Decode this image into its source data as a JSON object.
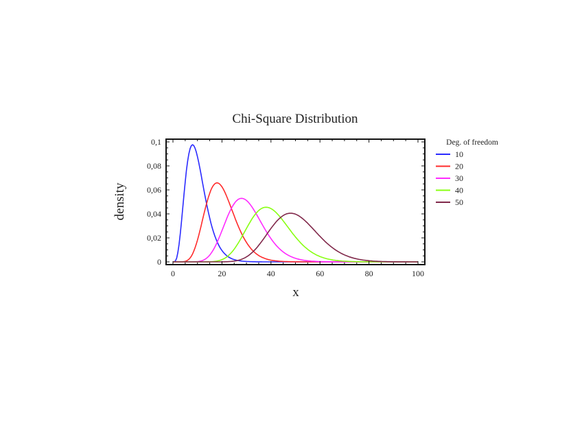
{
  "chart_data": {
    "type": "line",
    "title": "Chi-Square Distribution",
    "xlabel": "x",
    "ylabel": "density",
    "xlim": [
      0,
      100
    ],
    "ylim": [
      0,
      0.1
    ],
    "xticks": [
      "0",
      "20",
      "40",
      "60",
      "80",
      "100"
    ],
    "xtick_values": [
      0,
      20,
      40,
      60,
      80,
      100
    ],
    "yticks": [
      "0",
      "0,02",
      "0,04",
      "0,06",
      "0,08",
      "0,1"
    ],
    "ytick_values": [
      0,
      0.02,
      0.04,
      0.06,
      0.08,
      0.1
    ],
    "grid": false,
    "legend": {
      "title": "Deg. of freedom",
      "placement": "right"
    },
    "series": [
      {
        "name": "10",
        "df": 10,
        "color": "#2a2aff",
        "peak": {
          "x": 8,
          "y": 0.0977
        }
      },
      {
        "name": "20",
        "df": 20,
        "color": "#ff2a2a",
        "peak": {
          "x": 18,
          "y": 0.0661
        }
      },
      {
        "name": "30",
        "df": 30,
        "color": "#ff2aff",
        "peak": {
          "x": 28,
          "y": 0.0531
        }
      },
      {
        "name": "40",
        "df": 40,
        "color": "#88ff11",
        "peak": {
          "x": 38,
          "y": 0.0455
        }
      },
      {
        "name": "50",
        "df": 50,
        "color": "#80284a",
        "peak": {
          "x": 48,
          "y": 0.0405
        }
      }
    ]
  }
}
